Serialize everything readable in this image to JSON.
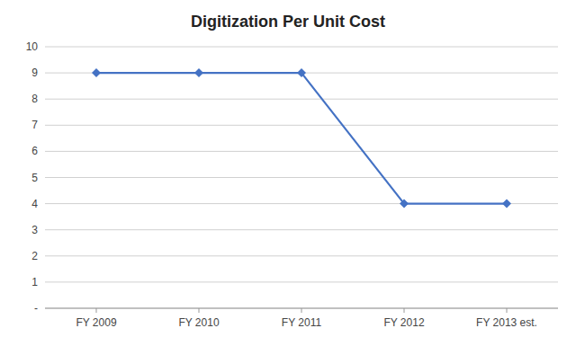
{
  "chart_data": {
    "type": "line",
    "title": "Digitization Per Unit Cost",
    "categories": [
      "FY 2009",
      "FY 2010",
      "FY 2011",
      "FY 2012",
      "FY 2013 est."
    ],
    "values": [
      9,
      9,
      9,
      4,
      4
    ],
    "color": "#4472C4",
    "marker": "diamond",
    "ylim": [
      0,
      10
    ],
    "yticks": [
      {
        "value": 0,
        "label": "-"
      },
      1,
      2,
      3,
      4,
      5,
      6,
      7,
      8,
      9,
      10
    ],
    "grid": true
  }
}
